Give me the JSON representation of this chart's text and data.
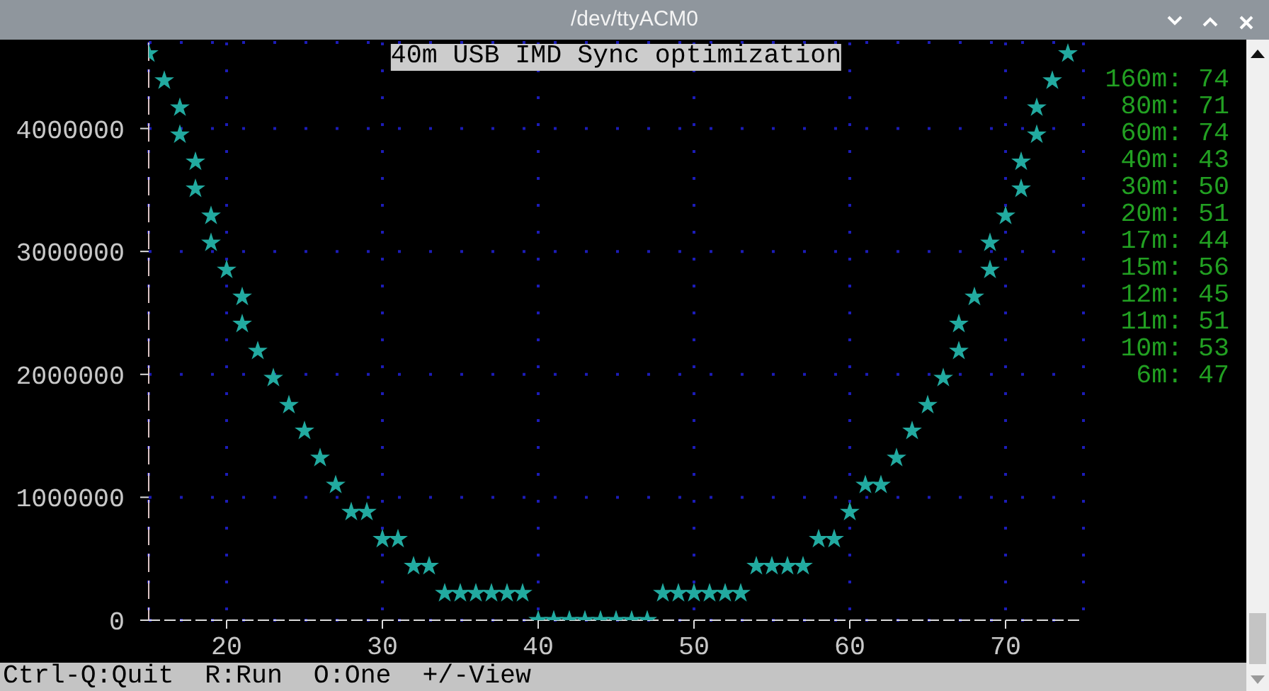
{
  "chart_data": {
    "type": "scatter",
    "title": "40m USB IMD Sync optimization",
    "x": [
      15,
      16,
      17,
      17,
      18,
      18,
      19,
      19,
      20,
      21,
      21,
      22,
      23,
      24,
      25,
      26,
      27,
      28,
      29,
      30,
      31,
      32,
      33,
      34,
      35,
      36,
      37,
      38,
      39,
      40,
      41,
      42,
      43,
      44,
      45,
      46,
      47,
      48,
      49,
      50,
      51,
      52,
      53,
      54,
      55,
      56,
      57,
      58,
      59,
      60,
      61,
      62,
      63,
      64,
      65,
      66,
      67,
      67,
      68,
      69,
      69,
      70,
      71,
      71,
      72,
      72,
      73,
      74
    ],
    "values": [
      4610000,
      4390000,
      4170000,
      3950000,
      3730000,
      3510000,
      3290000,
      3070000,
      2850000,
      2630000,
      2410000,
      2190000,
      1970000,
      1750000,
      1540000,
      1320000,
      1100000,
      880000,
      880000,
      660000,
      660000,
      440000,
      440000,
      220000,
      220000,
      220000,
      220000,
      220000,
      220000,
      0,
      0,
      0,
      0,
      0,
      0,
      0,
      0,
      220000,
      220000,
      220000,
      220000,
      220000,
      220000,
      440000,
      440000,
      440000,
      440000,
      660000,
      660000,
      880000,
      1100000,
      1100000,
      1320000,
      1540000,
      1750000,
      1970000,
      2190000,
      2410000,
      2630000,
      2850000,
      3070000,
      3290000,
      3510000,
      3730000,
      3950000,
      4170000,
      4390000,
      4610000
    ],
    "color": "#22aaa0",
    "marker": "star",
    "xlim": [
      15,
      75
    ],
    "xticks": [
      20,
      30,
      40,
      50,
      60,
      70
    ],
    "ylim": [
      0,
      4700000
    ],
    "yticks": [
      0,
      1000000,
      2000000,
      3000000,
      4000000
    ],
    "grid": true,
    "annotations": [
      "/dev/ttyACM0",
      "160m: 74",
      "80m: 71",
      "60m: 74",
      "40m: 43",
      "30m: 50",
      "20m: 51",
      "17m: 44",
      "15m: 56",
      "12m: 45",
      "11m: 51",
      "10m: 53",
      "6m: 47",
      "Ctrl-Q:Quit  R:Run  O:One  +/-View"
    ]
  }
}
